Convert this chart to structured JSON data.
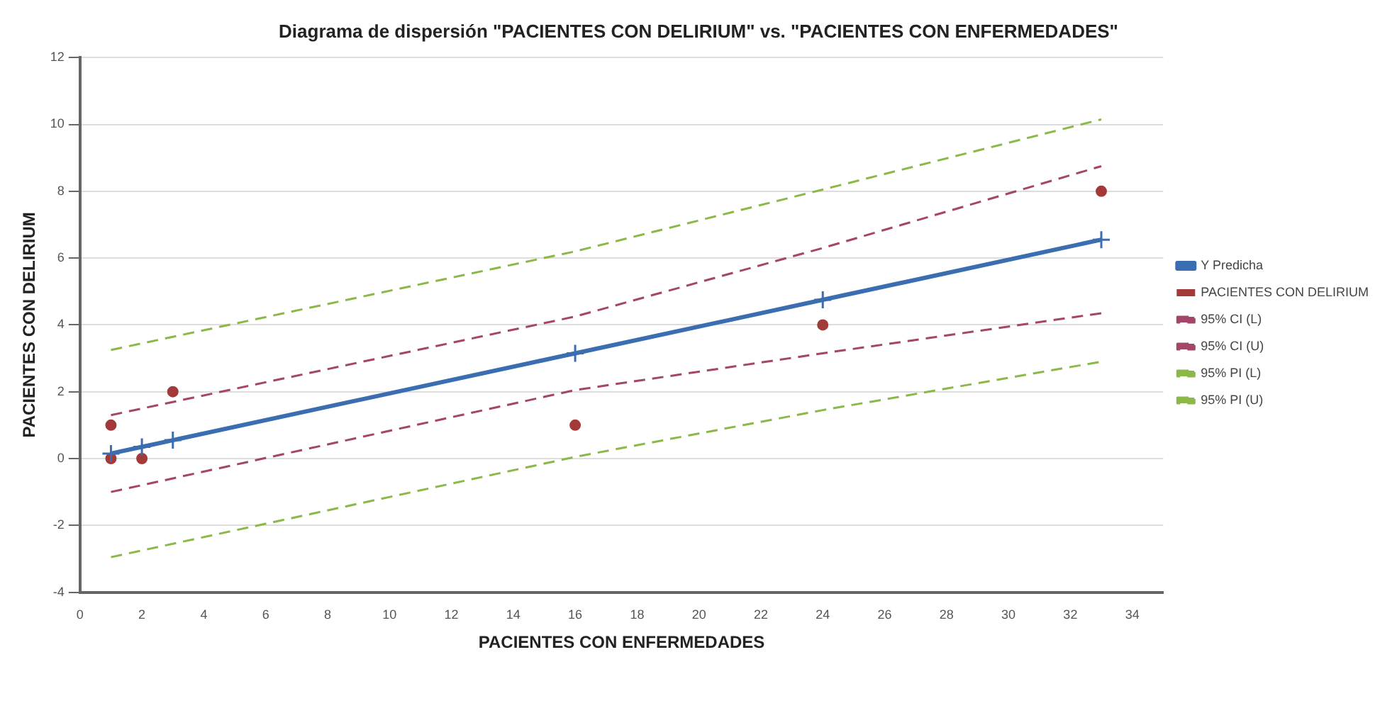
{
  "chart_data": {
    "type": "line",
    "title": "Diagrama de dispersión \"PACIENTES CON DELIRIUM\" vs. \"PACIENTES CON ENFERMEDADES\"",
    "xlabel": "PACIENTES CON ENFERMEDADES",
    "ylabel": "PACIENTES CON DELIRIUM",
    "xlim": [
      0,
      35
    ],
    "xticks": [
      0,
      2,
      4,
      6,
      8,
      10,
      12,
      14,
      16,
      18,
      20,
      22,
      24,
      26,
      28,
      30,
      32,
      34
    ],
    "ylim": [
      -4,
      12
    ],
    "yticks": [
      -4,
      -2,
      0,
      2,
      4,
      6,
      8,
      10,
      12
    ],
    "grid": "y",
    "legend": "right",
    "series": [
      {
        "name": "Y Predicha",
        "color": "#3b6eb0",
        "marker": "cross",
        "line_style": "solid",
        "x": [
          1,
          2,
          3,
          16,
          24,
          33
        ],
        "values": [
          0.15,
          0.35,
          0.55,
          3.15,
          4.75,
          6.55
        ]
      },
      {
        "name": "PACIENTES CON DELIRIUM",
        "type": "scatter",
        "color": "#a33a3a",
        "marker": "circle",
        "x": [
          1,
          1,
          2,
          3,
          16,
          24,
          33
        ],
        "values": [
          1,
          0,
          0,
          2,
          1,
          4,
          8
        ]
      },
      {
        "name": "95% CI (L)",
        "color": "#a4456a",
        "marker": "none",
        "line_style": "dashed",
        "x": [
          1,
          16,
          24,
          33
        ],
        "values": [
          -1.0,
          2.05,
          3.15,
          4.35
        ]
      },
      {
        "name": "95% CI (U)",
        "color": "#a4456a",
        "marker": "none",
        "line_style": "dashed",
        "x": [
          1,
          16,
          24,
          33
        ],
        "values": [
          1.3,
          4.25,
          6.3,
          8.75
        ]
      },
      {
        "name": "95% PI (L)",
        "color": "#8cb84a",
        "marker": "none",
        "line_style": "dashed",
        "x": [
          1,
          16,
          24,
          33
        ],
        "values": [
          -2.95,
          0.05,
          1.45,
          2.9
        ]
      },
      {
        "name": "95% PI (U)",
        "color": "#8cb84a",
        "marker": "none",
        "line_style": "dashed",
        "x": [
          1,
          16,
          24,
          33
        ],
        "values": [
          3.25,
          6.2,
          8.05,
          10.15
        ]
      }
    ]
  }
}
